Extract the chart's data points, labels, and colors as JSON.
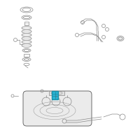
{
  "bg_color": "#ffffff",
  "line_color": "#888888",
  "line_color_dark": "#555555",
  "highlight_color": "#29b4d4",
  "highlight_edge": "#1a8fa8",
  "figsize": [
    2.0,
    2.0
  ],
  "dpi": 100
}
